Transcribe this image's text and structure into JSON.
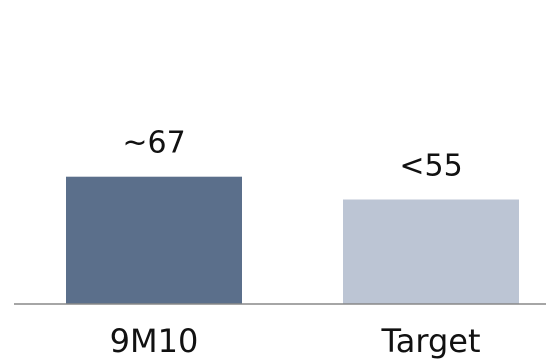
{
  "chart_data": {
    "type": "bar",
    "categories": [
      "9M10",
      "Target"
    ],
    "values": [
      67,
      55
    ],
    "value_labels": [
      "~67",
      "<55"
    ],
    "colors": [
      "#5b6f8b",
      "#bcc5d4"
    ],
    "axis_color": "#888888",
    "ylim": [
      0,
      100
    ],
    "grid": false,
    "legend": "none"
  }
}
